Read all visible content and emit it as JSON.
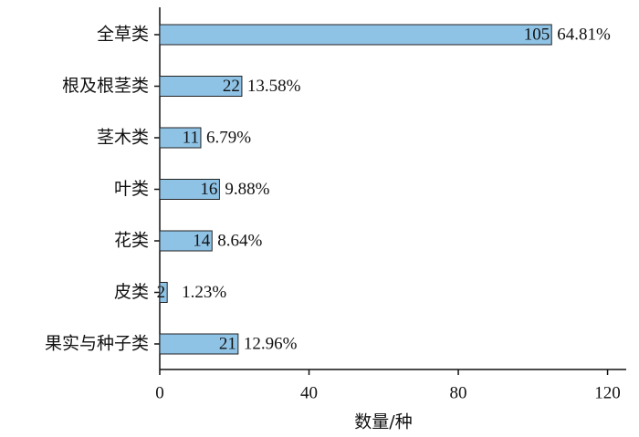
{
  "chart_data": {
    "type": "barh",
    "categories": [
      "全草类",
      "根及根茎类",
      "茎木类",
      "叶类",
      "花类",
      "皮类",
      "果实与种子类"
    ],
    "values": [
      105,
      22,
      11,
      16,
      14,
      2,
      21
    ],
    "share_labels": [
      "64.81%",
      "13.58%",
      "6.79%",
      "9.88%",
      "8.64%",
      "1.23%",
      "12.96%"
    ],
    "color": "#8fc3e6",
    "xlabel": "数量/种",
    "xlim": [
      0,
      125
    ],
    "xticks": [
      0,
      40,
      80,
      120
    ]
  }
}
